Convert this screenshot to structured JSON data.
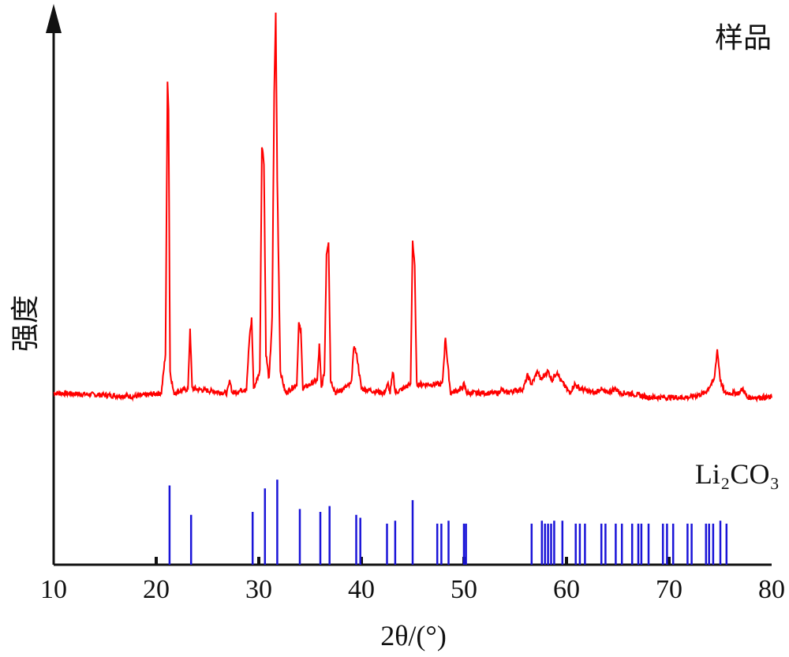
{
  "chart_data": {
    "type": "line",
    "title": "",
    "xlabel": "2θ/(°)",
    "ylabel": "强度",
    "xlim": [
      10,
      80
    ],
    "grid": false,
    "xticks": [
      10,
      20,
      30,
      40,
      50,
      60,
      70,
      80
    ],
    "colors": {
      "sample": "#ff0000",
      "reference": "#1a14d8",
      "axis": "#111111"
    },
    "series": [
      {
        "name": "样品",
        "kind": "pattern",
        "baseline": 0.13,
        "points": [
          [
            10,
            0.13
          ],
          [
            12,
            0.128
          ],
          [
            14,
            0.126
          ],
          [
            16,
            0.124
          ],
          [
            18,
            0.122
          ],
          [
            20.5,
            0.13
          ],
          [
            20.9,
            0.22
          ],
          [
            21.0,
            0.52
          ],
          [
            21.1,
            0.85
          ],
          [
            21.2,
            0.78
          ],
          [
            21.35,
            0.18
          ],
          [
            21.7,
            0.13
          ],
          [
            23.1,
            0.14
          ],
          [
            23.3,
            0.28
          ],
          [
            23.5,
            0.14
          ],
          [
            26.9,
            0.13
          ],
          [
            27.2,
            0.16
          ],
          [
            27.4,
            0.13
          ],
          [
            28.8,
            0.14
          ],
          [
            29.1,
            0.26
          ],
          [
            29.3,
            0.3
          ],
          [
            29.5,
            0.14
          ],
          [
            30.1,
            0.18
          ],
          [
            30.3,
            0.7
          ],
          [
            30.5,
            0.66
          ],
          [
            30.7,
            0.22
          ],
          [
            31.0,
            0.16
          ],
          [
            31.3,
            0.3
          ],
          [
            31.5,
            0.82
          ],
          [
            31.65,
            1.0
          ],
          [
            31.8,
            0.62
          ],
          [
            32.1,
            0.18
          ],
          [
            32.6,
            0.13
          ],
          [
            33.7,
            0.15
          ],
          [
            33.9,
            0.29
          ],
          [
            34.1,
            0.27
          ],
          [
            34.3,
            0.14
          ],
          [
            35.7,
            0.16
          ],
          [
            35.9,
            0.24
          ],
          [
            36.1,
            0.14
          ],
          [
            36.4,
            0.18
          ],
          [
            36.6,
            0.45
          ],
          [
            36.8,
            0.48
          ],
          [
            37.0,
            0.16
          ],
          [
            37.5,
            0.13
          ],
          [
            39.0,
            0.15
          ],
          [
            39.3,
            0.24
          ],
          [
            39.6,
            0.21
          ],
          [
            40.0,
            0.14
          ],
          [
            42.2,
            0.13
          ],
          [
            42.6,
            0.15
          ],
          [
            42.8,
            0.13
          ],
          [
            43.1,
            0.18
          ],
          [
            43.3,
            0.13
          ],
          [
            44.8,
            0.15
          ],
          [
            45.0,
            0.48
          ],
          [
            45.2,
            0.42
          ],
          [
            45.4,
            0.15
          ],
          [
            47.9,
            0.15
          ],
          [
            48.2,
            0.26
          ],
          [
            48.4,
            0.2
          ],
          [
            48.7,
            0.13
          ],
          [
            49.8,
            0.14
          ],
          [
            50.0,
            0.15
          ],
          [
            50.3,
            0.13
          ],
          [
            53.4,
            0.13
          ],
          [
            53.6,
            0.14
          ],
          [
            54.0,
            0.13
          ],
          [
            55.8,
            0.14
          ],
          [
            56.2,
            0.17
          ],
          [
            56.6,
            0.15
          ],
          [
            57.2,
            0.18
          ],
          [
            57.5,
            0.16
          ],
          [
            58.2,
            0.18
          ],
          [
            58.6,
            0.16
          ],
          [
            59.1,
            0.18
          ],
          [
            59.4,
            0.16
          ],
          [
            60.3,
            0.13
          ],
          [
            60.8,
            0.15
          ],
          [
            61.3,
            0.14
          ],
          [
            62.8,
            0.13
          ],
          [
            63.3,
            0.14
          ],
          [
            63.8,
            0.13
          ],
          [
            64.8,
            0.14
          ],
          [
            65.2,
            0.13
          ],
          [
            66.0,
            0.13
          ],
          [
            68.0,
            0.12
          ],
          [
            70.0,
            0.12
          ],
          [
            72.0,
            0.12
          ],
          [
            73.5,
            0.13
          ],
          [
            74.4,
            0.16
          ],
          [
            74.7,
            0.23
          ],
          [
            75.0,
            0.16
          ],
          [
            75.4,
            0.13
          ],
          [
            76.8,
            0.13
          ],
          [
            77.2,
            0.14
          ],
          [
            77.6,
            0.12
          ],
          [
            78.5,
            0.12
          ],
          [
            80,
            0.12
          ]
        ]
      },
      {
        "name": "Li₂CO₃",
        "kind": "reference",
        "positions": [
          21.3,
          23.4,
          29.4,
          30.6,
          31.8,
          34.0,
          36.0,
          36.9,
          39.5,
          39.9,
          42.5,
          43.3,
          45.0,
          47.4,
          47.8,
          48.5,
          50.0,
          50.2,
          56.6,
          57.6,
          57.9,
          58.2,
          58.5,
          58.8,
          59.6,
          60.9,
          61.3,
          61.8,
          63.4,
          63.8,
          64.8,
          65.4,
          66.4,
          67.0,
          67.3,
          68.0,
          69.4,
          69.8,
          70.4,
          71.8,
          72.2,
          73.6,
          73.9,
          74.3,
          75.0,
          75.6
        ],
        "intensities": [
          0.27,
          0.17,
          0.18,
          0.26,
          0.29,
          0.19,
          0.18,
          0.2,
          0.17,
          0.16,
          0.14,
          0.15,
          0.22,
          0.14,
          0.14,
          0.15,
          0.14,
          0.14,
          0.14,
          0.15,
          0.14,
          0.14,
          0.14,
          0.15,
          0.15,
          0.14,
          0.14,
          0.14,
          0.14,
          0.14,
          0.14,
          0.14,
          0.14,
          0.14,
          0.14,
          0.14,
          0.14,
          0.14,
          0.14,
          0.14,
          0.14,
          0.14,
          0.14,
          0.14,
          0.15,
          0.14
        ]
      }
    ]
  }
}
